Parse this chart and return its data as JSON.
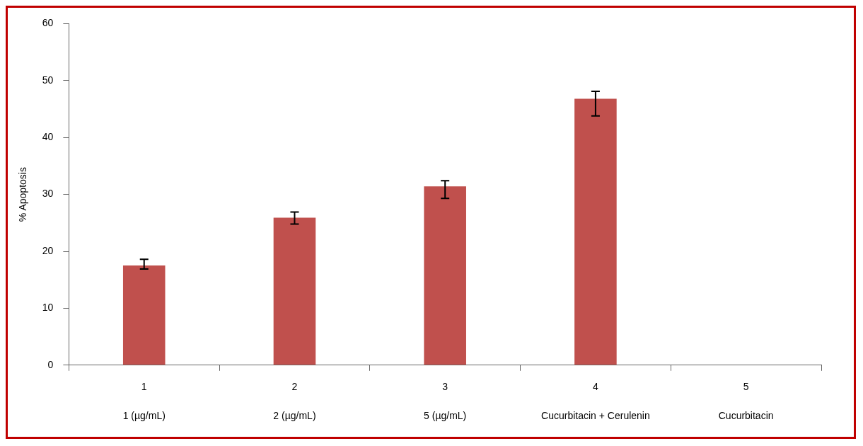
{
  "chart_data": {
    "type": "bar",
    "ylabel": "% Apoptosis",
    "categories": [
      "1\n1 (µg/mL)",
      "2\n2 (µg/mL)",
      "3\n5 (µg/mL)",
      "4\nCucurbitacin + Cerulenin",
      "5\nCucurbitacin"
    ],
    "values": [
      17.5,
      25.9,
      31.4,
      46.8,
      null
    ],
    "errors": [
      [
        16.9,
        18.6
      ],
      [
        24.8,
        26.9
      ],
      [
        29.3,
        32.4
      ],
      [
        43.8,
        48.1
      ],
      null
    ],
    "color": "#c0504d",
    "ylim": [
      0,
      60
    ],
    "yticks": [
      0,
      10,
      20,
      30,
      40,
      50,
      60
    ],
    "grid": false,
    "legend": false
  }
}
